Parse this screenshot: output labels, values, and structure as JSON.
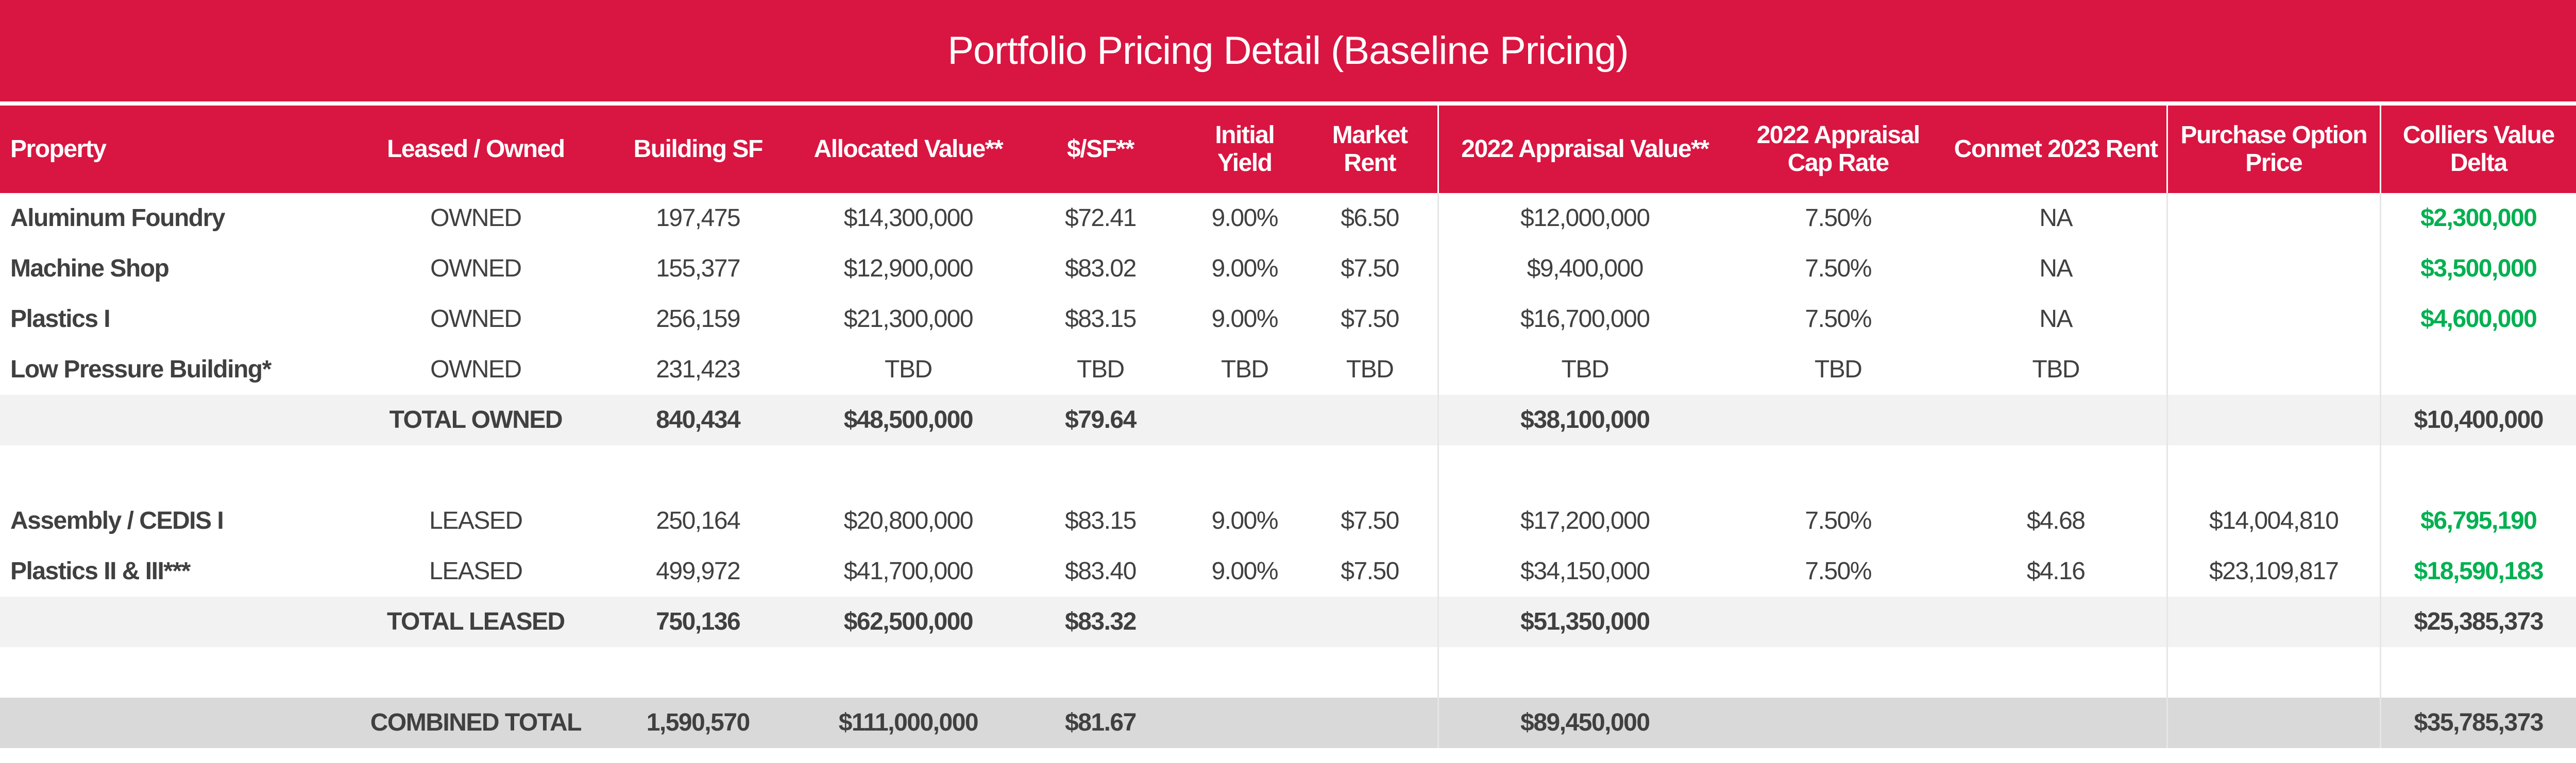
{
  "title": "Portfolio Pricing Detail (Baseline Pricing)",
  "colors": {
    "header_bg": "#D91541",
    "positive_delta": "#00B050",
    "subtotal_bg": "#F2F2F2",
    "combined_bg": "#D9D9D9"
  },
  "columns": [
    "Property",
    "Leased / Owned",
    "Building SF",
    "Allocated Value**",
    "$/SF**",
    "Initial Yield",
    "Market Rent",
    "2022 Appraisal Value**",
    "2022 Appraisal Cap Rate",
    "Conmet 2023 Rent",
    "Purchase Option Price",
    "Colliers Value Delta"
  ],
  "rows": [
    {
      "type": "data",
      "cells": [
        "Aluminum Foundry",
        "OWNED",
        "197,475",
        "$14,300,000",
        "$72.41",
        "9.00%",
        "$6.50",
        "$12,000,000",
        "7.50%",
        "NA",
        "",
        "$2,300,000"
      ],
      "delta_positive": true
    },
    {
      "type": "data",
      "cells": [
        "Machine Shop",
        "OWNED",
        "155,377",
        "$12,900,000",
        "$83.02",
        "9.00%",
        "$7.50",
        "$9,400,000",
        "7.50%",
        "NA",
        "",
        "$3,500,000"
      ],
      "delta_positive": true
    },
    {
      "type": "data",
      "cells": [
        "Plastics I",
        "OWNED",
        "256,159",
        "$21,300,000",
        "$83.15",
        "9.00%",
        "$7.50",
        "$16,700,000",
        "7.50%",
        "NA",
        "",
        "$4,600,000"
      ],
      "delta_positive": true
    },
    {
      "type": "data",
      "cells": [
        "Low Pressure Building*",
        "OWNED",
        "231,423",
        "TBD",
        "TBD",
        "TBD",
        "TBD",
        "TBD",
        "TBD",
        "TBD",
        "",
        ""
      ]
    },
    {
      "type": "subtotal",
      "cells": [
        "",
        "TOTAL OWNED",
        "840,434",
        "$48,500,000",
        "$79.64",
        "",
        "",
        "$38,100,000",
        "",
        "",
        "",
        "$10,400,000"
      ]
    },
    {
      "type": "blank",
      "cells": [
        "",
        "",
        "",
        "",
        "",
        "",
        "",
        "",
        "",
        "",
        "",
        ""
      ]
    },
    {
      "type": "data",
      "cells": [
        "Assembly / CEDIS I",
        "LEASED",
        "250,164",
        "$20,800,000",
        "$83.15",
        "9.00%",
        "$7.50",
        "$17,200,000",
        "7.50%",
        "$4.68",
        "$14,004,810",
        "$6,795,190"
      ],
      "delta_positive": true
    },
    {
      "type": "data",
      "cells": [
        "Plastics II & III***",
        "LEASED",
        "499,972",
        "$41,700,000",
        "$83.40",
        "9.00%",
        "$7.50",
        "$34,150,000",
        "7.50%",
        "$4.16",
        "$23,109,817",
        "$18,590,183"
      ],
      "delta_positive": true
    },
    {
      "type": "subtotal",
      "cells": [
        "",
        "TOTAL LEASED",
        "750,136",
        "$62,500,000",
        "$83.32",
        "",
        "",
        "$51,350,000",
        "",
        "",
        "",
        "$25,385,373"
      ]
    },
    {
      "type": "blank",
      "cells": [
        "",
        "",
        "",
        "",
        "",
        "",
        "",
        "",
        "",
        "",
        "",
        ""
      ]
    },
    {
      "type": "combined",
      "cells": [
        "",
        "COMBINED TOTAL",
        "1,590,570",
        "$111,000,000",
        "$81.67",
        "",
        "",
        "$89,450,000",
        "",
        "",
        "",
        "$35,785,373"
      ]
    }
  ]
}
